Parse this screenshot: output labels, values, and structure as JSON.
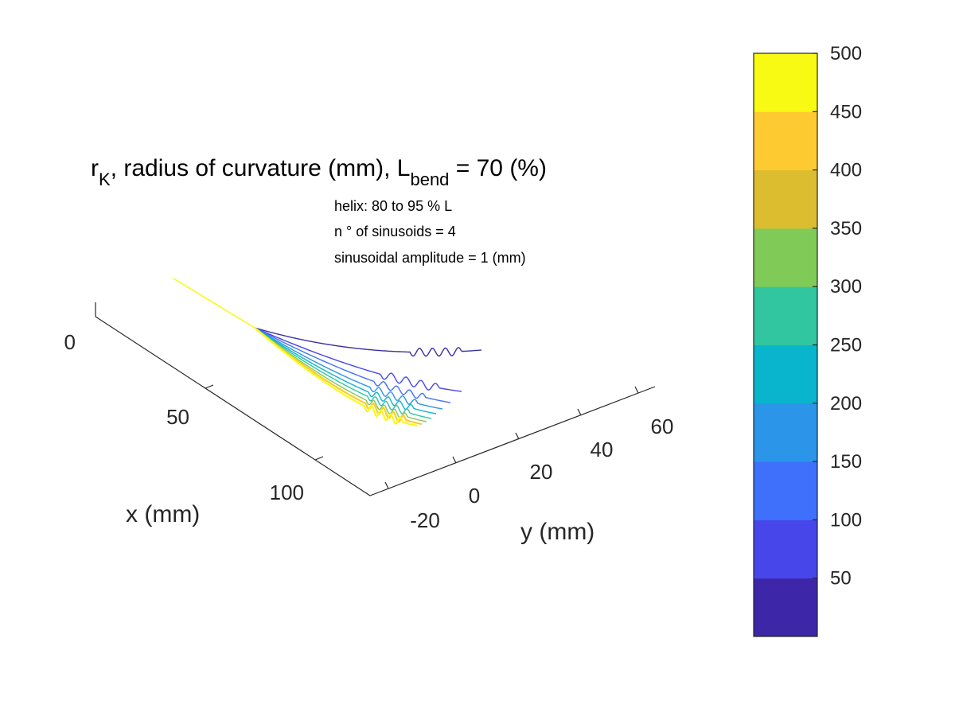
{
  "chart_data": {
    "type": "line",
    "projection": "3d",
    "title": {
      "main_prefix": "r",
      "main_sub1": "K",
      "main_mid": ", radius of curvature (mm), L",
      "main_sub2": "bend",
      "main_suffix": " = 70 (%)"
    },
    "annotations": [
      "helix: 80 to 95 % L",
      "n ° of sinusoids = 4",
      "sinusoidal amplitude = 1 (mm)"
    ],
    "xlabel": "x (mm)",
    "ylabel": "y (mm)",
    "x_ticks": [
      "0",
      "50",
      "100"
    ],
    "y_ticks": [
      "-20",
      "0",
      "20",
      "40",
      "60"
    ],
    "colorbar": {
      "range": [
        0,
        500
      ],
      "ticks": [
        "50",
        "100",
        "150",
        "200",
        "250",
        "300",
        "350",
        "400",
        "450",
        "500"
      ],
      "colors": [
        "#3e26a8",
        "#4746eb",
        "#3f70fb",
        "#2a95e9",
        "#09b5cd",
        "#31c6a0",
        "#80cb58",
        "#dcbd2f",
        "#fdcb31",
        "#f9fa14"
      ]
    },
    "series": [
      {
        "color": "#3a2fa0"
      },
      {
        "color": "#4746eb"
      },
      {
        "color": "#3f70fb"
      },
      {
        "color": "#2a95e9"
      },
      {
        "color": "#09b5cd"
      },
      {
        "color": "#31c6a0"
      },
      {
        "color": "#80cb58"
      },
      {
        "color": "#fdcb31"
      },
      {
        "color": "#f9fa14"
      }
    ]
  }
}
